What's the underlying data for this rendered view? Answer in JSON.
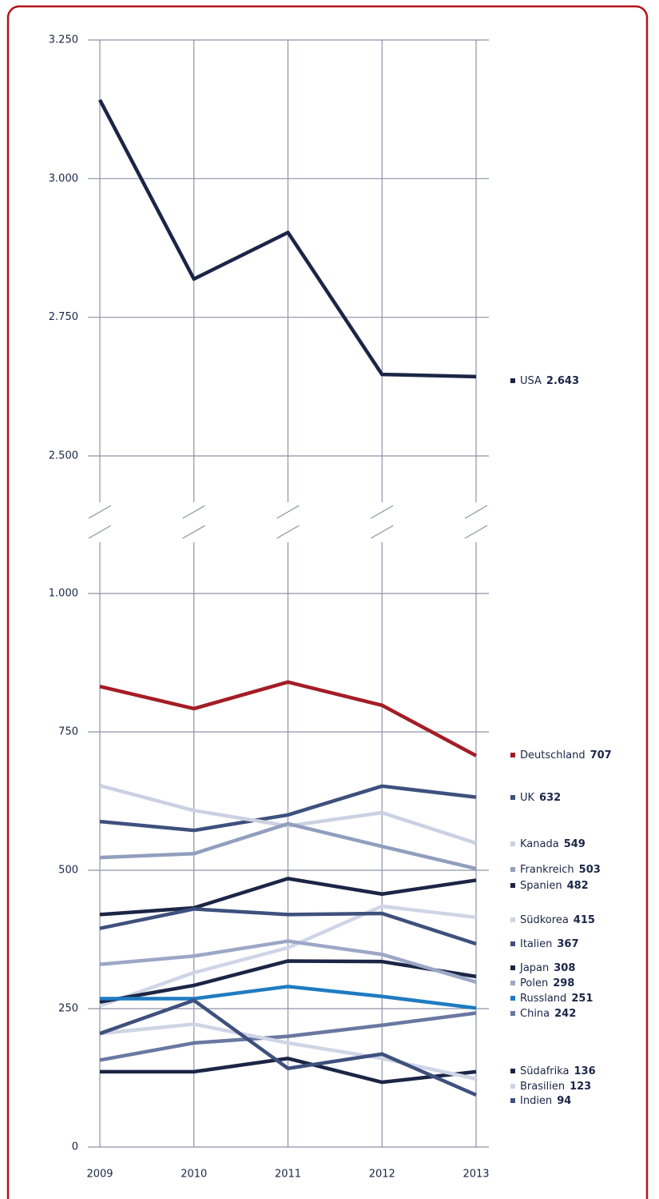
{
  "chart_data": {
    "type": "line",
    "categories": [
      "2009",
      "2010",
      "2011",
      "2012",
      "2013"
    ],
    "ylim": [
      0,
      1000
    ],
    "yticks": [
      0,
      250,
      500,
      750,
      {
        "value": 1000,
        "label": "1.000"
      }
    ],
    "ylim_break": [
      2500,
      3250
    ],
    "yticks_break": [
      {
        "value": 2500,
        "label": "2.500"
      },
      {
        "value": 2750,
        "label": "2.750"
      },
      {
        "value": 3000,
        "label": "3.000"
      },
      {
        "value": 3250,
        "label": "3.250"
      }
    ],
    "grid": true,
    "series": [
      {
        "name": "USA",
        "color": "#1b2546",
        "values": [
          3142,
          2819,
          2903,
          2647,
          2643
        ],
        "value_labels": [
          null,
          null,
          null,
          null,
          "2.643"
        ]
      },
      {
        "name": "Deutschland",
        "color": "#a31d26",
        "values": [
          832,
          792,
          840,
          798,
          707
        ]
      },
      {
        "name": "UK",
        "color": "#3e507d",
        "values": [
          588,
          572,
          600,
          652,
          632
        ]
      },
      {
        "name": "Kanada",
        "color": "#cbd1e2",
        "values": [
          653,
          608,
          580,
          604,
          549
        ]
      },
      {
        "name": "Frankreich",
        "color": "#919ebe",
        "values": [
          523,
          530,
          584,
          543,
          503
        ]
      },
      {
        "name": "Spanien",
        "color": "#1b2546",
        "values": [
          420,
          432,
          485,
          457,
          482
        ]
      },
      {
        "name": "Südkorea",
        "color": "#cfd5e6",
        "values": [
          255,
          315,
          360,
          435,
          415
        ]
      },
      {
        "name": "Italien",
        "color": "#3e507d",
        "values": [
          395,
          430,
          420,
          422,
          367
        ]
      },
      {
        "name": "Japan",
        "color": "#1b2546",
        "values": [
          262,
          292,
          336,
          335,
          308
        ]
      },
      {
        "name": "Polen",
        "color": "#9ca7c6",
        "values": [
          330,
          345,
          372,
          348,
          298
        ]
      },
      {
        "name": "Russland",
        "color": "#1f7bc1",
        "values": [
          268,
          268,
          290,
          272,
          251
        ]
      },
      {
        "name": "China",
        "color": "#6978a1",
        "values": [
          157,
          188,
          200,
          220,
          242
        ]
      },
      {
        "name": "Südafrika",
        "color": "#1b2546",
        "values": [
          136,
          136,
          160,
          117,
          136
        ]
      },
      {
        "name": "Brasilien",
        "color": "#cfd5e6",
        "values": [
          205,
          222,
          188,
          160,
          123
        ]
      },
      {
        "name": "Indien",
        "color": "#3e507d",
        "values": [
          205,
          265,
          142,
          168,
          94
        ]
      }
    ]
  }
}
